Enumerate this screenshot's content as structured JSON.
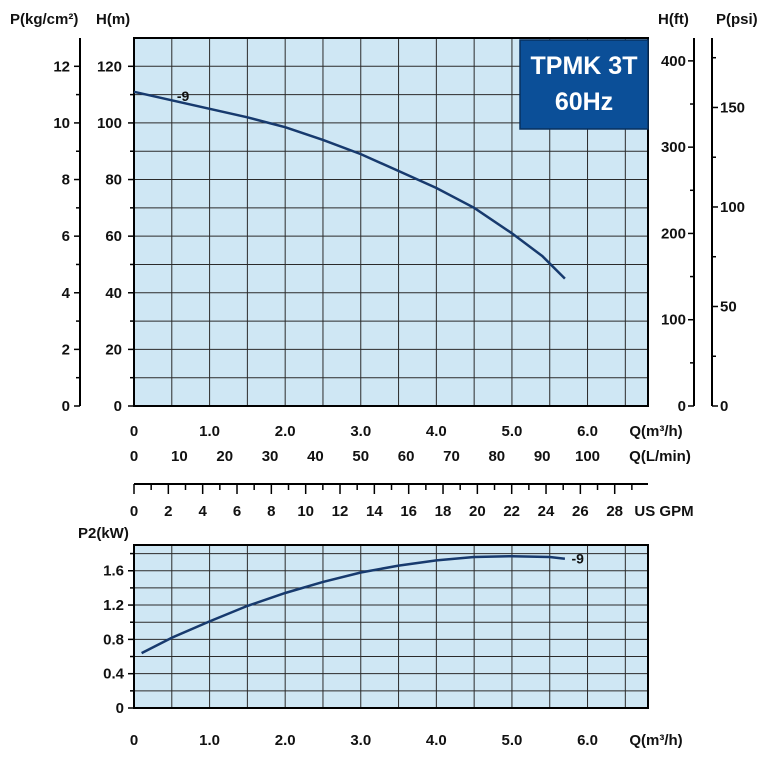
{
  "title": {
    "line1": "TPMK 3T",
    "line2": "60Hz"
  },
  "chart_data": [
    {
      "type": "line",
      "name": "head_curve",
      "title": "TPMK 3T 60Hz",
      "xlabel": "Q(m³/h)",
      "ylabel": "H(m)",
      "ylabel_left2": "P(kg/cm²)",
      "ylabel_right1": "H(ft)",
      "ylabel_right2": "P(psi)",
      "xlim": [
        0,
        6.8
      ],
      "ylim": [
        0,
        130
      ],
      "x_ticks": [
        0,
        1.0,
        2.0,
        3.0,
        4.0,
        5.0,
        6.0
      ],
      "x_tick_labels": [
        "0",
        "1.0",
        "2.0",
        "3.0",
        "4.0",
        "5.0",
        "6.0"
      ],
      "y_ticks": [
        0,
        20,
        40,
        60,
        80,
        100,
        120
      ],
      "p_kg_ticks": [
        0,
        2,
        4,
        6,
        8,
        10,
        12
      ],
      "h_ft_ticks": [
        0,
        100,
        200,
        300,
        400
      ],
      "p_psi_ticks": [
        0,
        50,
        100,
        150
      ],
      "grid": true,
      "series": [
        {
          "name": "-9",
          "x": [
            0,
            0.5,
            1.0,
            1.5,
            2.0,
            2.5,
            3.0,
            3.5,
            4.0,
            4.5,
            5.0,
            5.4,
            5.7
          ],
          "y": [
            111,
            108,
            105,
            102,
            98.5,
            94,
            89,
            83,
            77,
            70,
            61,
            53,
            45
          ]
        }
      ],
      "label": "-9"
    },
    {
      "type": "line",
      "name": "power_curve",
      "xlabel": "Q(m³/h)",
      "ylabel": "P2(kW)",
      "xlim": [
        0,
        6.8
      ],
      "ylim": [
        0,
        1.9
      ],
      "x_ticks": [
        0,
        1.0,
        2.0,
        3.0,
        4.0,
        5.0,
        6.0
      ],
      "x_tick_labels": [
        "0",
        "1.0",
        "2.0",
        "3.0",
        "4.0",
        "5.0",
        "6.0"
      ],
      "y_ticks": [
        0,
        0.4,
        0.8,
        1.2,
        1.6
      ],
      "y_tick_labels": [
        "0",
        "0.4",
        "0.8",
        "1.2",
        "1.6"
      ],
      "grid": true,
      "series": [
        {
          "name": "-9",
          "x": [
            0.1,
            0.5,
            1.0,
            1.5,
            2.0,
            2.5,
            3.0,
            3.5,
            4.0,
            4.5,
            5.0,
            5.5,
            5.7
          ],
          "y": [
            0.64,
            0.82,
            1.01,
            1.19,
            1.34,
            1.47,
            1.58,
            1.66,
            1.72,
            1.76,
            1.77,
            1.76,
            1.74
          ]
        }
      ],
      "label": "-9"
    }
  ],
  "flow_scales": {
    "lmin_label": "Q(L/min)",
    "lmin_ticks": [
      "0",
      "10",
      "20",
      "30",
      "40",
      "50",
      "60",
      "70",
      "80",
      "90",
      "100"
    ],
    "gpm_label": "US GPM",
    "gpm_ticks": [
      "0",
      "2",
      "4",
      "6",
      "8",
      "10",
      "12",
      "14",
      "16",
      "18",
      "20",
      "22",
      "24",
      "26",
      "28"
    ]
  }
}
